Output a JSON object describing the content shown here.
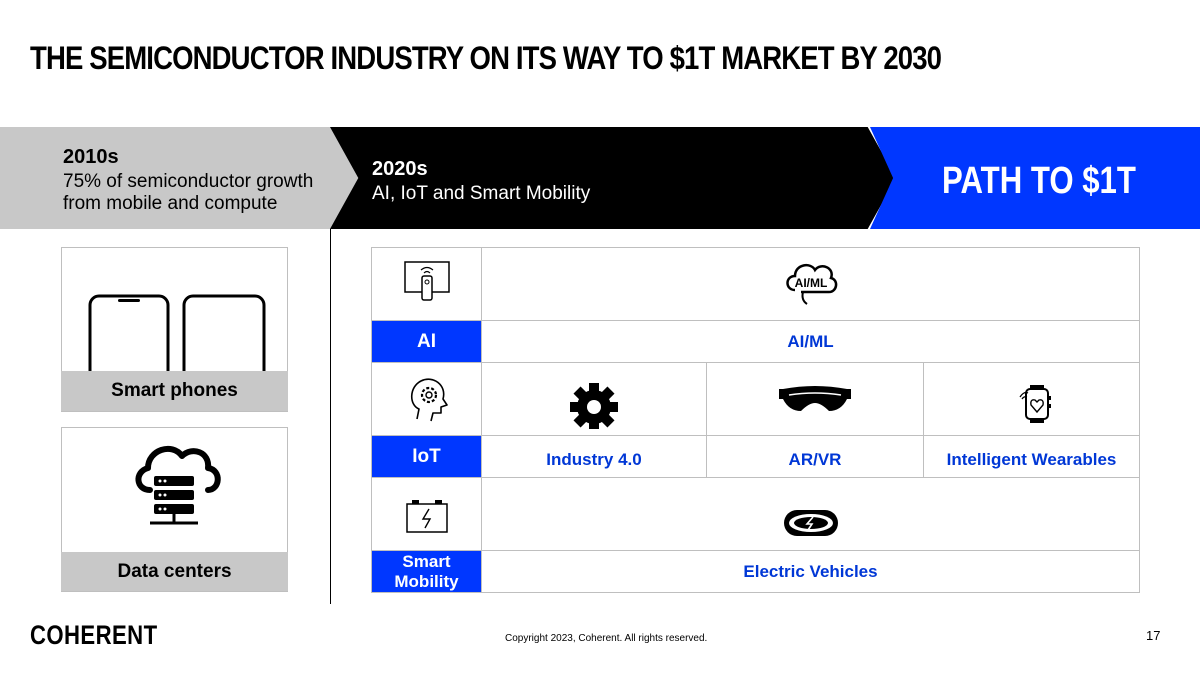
{
  "title": "THE SEMICONDUCTOR INDUSTRY ON ITS WAY TO $1T MARKET BY 2030",
  "eras": {
    "e2010": {
      "heading": "2010s",
      "text": "75% of semiconductor growth from mobile and compute"
    },
    "e2020": {
      "heading": "2020s",
      "text": "AI, IoT and Smart Mobility"
    },
    "path": {
      "label": "PATH TO $1T"
    }
  },
  "cards": {
    "phones": {
      "label": "Smart phones"
    },
    "datacenters": {
      "label": "Data centers"
    }
  },
  "rows": {
    "ai": {
      "label": "AI",
      "apps": [
        "AI/ML"
      ]
    },
    "iot": {
      "label": "IoT",
      "apps": [
        "Industry 4.0",
        "AR/VR",
        "Intelligent Wearables"
      ]
    },
    "mobility": {
      "label": "Smart Mobility",
      "apps": [
        "Electric Vehicles"
      ]
    }
  },
  "icon_text": {
    "aiml": "AI/ML"
  },
  "footer": {
    "logo": "COHERENT",
    "copyright": "Copyright 2023, Coherent. All rights reserved.",
    "page": "17"
  },
  "colors": {
    "accent": "#0037ff",
    "app_text": "#0037d6",
    "gray": "#c8c8c8"
  },
  "icons": [
    "remote-icon",
    "brain-gear-icon",
    "battery-icon",
    "cloud-brain-icon",
    "gear-icon",
    "vr-headset-icon",
    "smartwatch-icon",
    "electric-car-icon",
    "smartphone-icon",
    "cloud-server-icon"
  ]
}
